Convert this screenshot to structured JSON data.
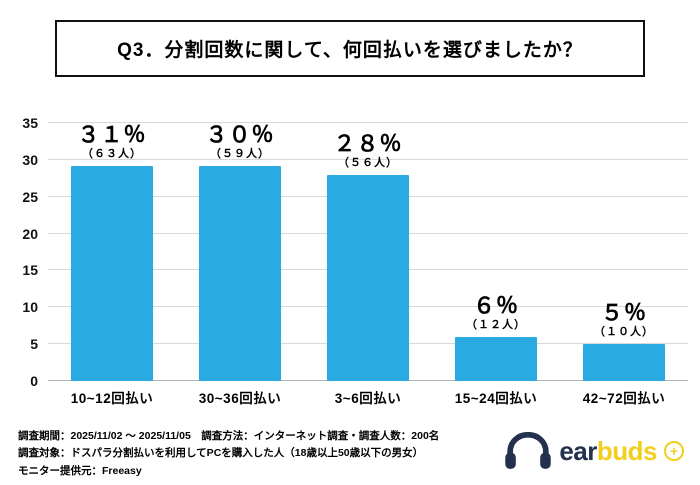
{
  "title": "Q3．分割回数に関して、何回払いを選びましたか？",
  "chart_data": {
    "type": "bar",
    "title": "Q3．分割回数に関して、何回払いを選びましたか？",
    "categories": [
      "10~12回払い",
      "30~36回払い",
      "3~6回払い",
      "15~24回払い",
      "42~72回払い"
    ],
    "values": [
      31,
      30,
      28,
      6,
      5
    ],
    "value_labels": [
      "３１％",
      "３０％",
      "２８％",
      "６％",
      "５％"
    ],
    "count_labels": [
      "（６３人）",
      "（５９人）",
      "（５６人）",
      "（１２人）",
      "（１０人）"
    ],
    "counts": [
      63,
      59,
      56,
      12,
      10
    ],
    "xlabel": "",
    "ylabel": "",
    "ylim": [
      0,
      35
    ],
    "yticks": [
      0,
      5,
      10,
      15,
      20,
      25,
      30,
      35
    ],
    "grid": true,
    "legend": false,
    "bar_color": "#29ABE2"
  },
  "footer": {
    "line1": "調査期間：2025/11/02 ～ 2025/11/05　調査方法：インターネット調査・調査人数：200名",
    "line2": "調査対象：ドスパラ分割払いを利用してPCを購入した人（18歳以上50歳以下の男女）",
    "line3": "モニター提供元：Freeasy"
  },
  "logo": {
    "ear": "ear",
    "buds": "buds",
    "plus": "＋",
    "navy": "#23304e",
    "yellow": "#f2cf1d"
  }
}
